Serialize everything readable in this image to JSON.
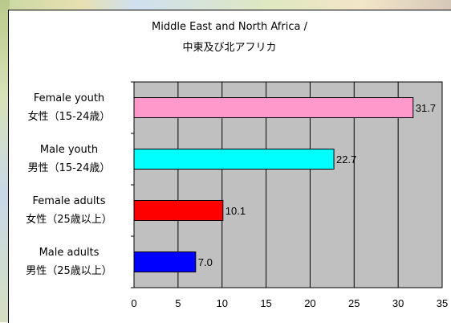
{
  "chart_data": {
    "type": "bar",
    "orientation": "horizontal",
    "title": "Middle East and North Africa /",
    "subtitle": "中東及び北アフリカ",
    "categories": [
      {
        "line1": "Female youth",
        "line2": "女性（15-24歳）"
      },
      {
        "line1": "Male youth",
        "line2": "男性（15-24歳）"
      },
      {
        "line1": "Female adults",
        "line2": "女性（25歳以上）"
      },
      {
        "line1": "Male adults",
        "line2": "男性（25歳以上）"
      }
    ],
    "values": [
      31.7,
      22.7,
      10.1,
      7.0
    ],
    "value_labels": [
      "31.7",
      "22.7",
      "10.1",
      "7.0"
    ],
    "colors": [
      "#ff99cc",
      "#00ffff",
      "#ff0000",
      "#0000ff"
    ],
    "xlim": [
      0,
      35
    ],
    "xticks": [
      "0",
      "5",
      "10",
      "15",
      "20",
      "25",
      "30",
      "35"
    ],
    "grid": true,
    "legend": "none",
    "plot_background": "#c0c0c0"
  }
}
